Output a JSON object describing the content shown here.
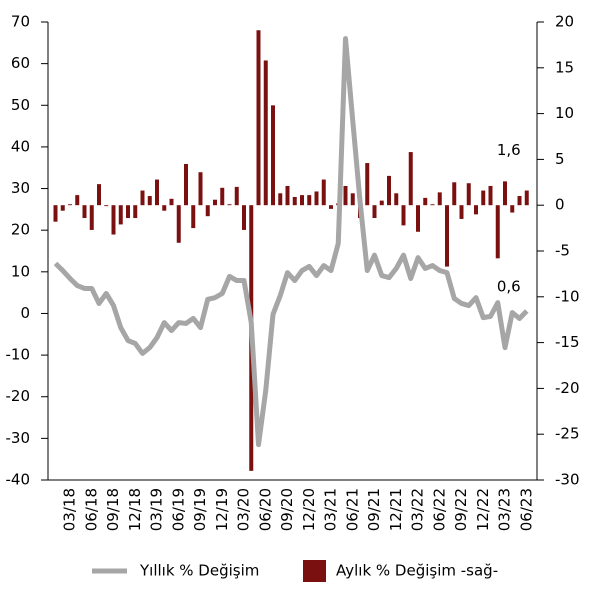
{
  "chart_data": {
    "type": "bar_line_dual",
    "categories": [
      null,
      null,
      "03/18",
      null,
      null,
      "06/18",
      null,
      null,
      "09/18",
      null,
      null,
      "12/18",
      null,
      null,
      "03/19",
      null,
      null,
      "06/19",
      null,
      null,
      "09/19",
      null,
      null,
      "12/19",
      null,
      null,
      "03/20",
      null,
      null,
      "06/20",
      null,
      null,
      "09/20",
      null,
      null,
      "12/20",
      null,
      null,
      "03/21",
      null,
      null,
      "06/21",
      null,
      null,
      "09/21",
      null,
      null,
      "12/21",
      null,
      null,
      "03/22",
      null,
      null,
      "06/22",
      null,
      null,
      "09/22",
      null,
      null,
      "12/22",
      null,
      null,
      "03/23",
      null,
      null,
      "06/23"
    ],
    "series": [
      {
        "name": "Yıllık % Değişim",
        "type": "line",
        "axis": "y",
        "color": "#a6a6a6",
        "values": [
          12,
          10.3,
          8.4,
          6.7,
          6,
          6,
          2.4,
          4.8,
          1.9,
          -3.4,
          -6.5,
          -7.2,
          -9.6,
          -8.2,
          -5.8,
          -2.2,
          -4.1,
          -2.2,
          -2.4,
          -1.2,
          -3.4,
          3.4,
          3.8,
          4.8,
          8.9,
          7.9,
          7.9,
          -2.2,
          -31.5,
          -18.5,
          -0.2,
          4.3,
          9.8,
          7.9,
          10.3,
          11.3,
          9.1,
          11.5,
          10.3,
          16.8,
          66,
          46.3,
          27,
          10.3,
          14,
          9.1,
          8.6,
          10.8,
          14,
          8.4,
          13.4,
          10.8,
          11.5,
          10.3,
          9.8,
          3.6,
          2.4,
          1.9,
          3.8,
          -1,
          -0.7,
          2.6,
          -8.2,
          0.2,
          -1.2,
          0.6
        ],
        "value_labels": [
          null,
          null,
          null,
          null,
          null,
          null,
          null,
          null,
          null,
          null,
          null,
          null,
          null,
          null,
          null,
          null,
          null,
          null,
          null,
          null,
          null,
          null,
          null,
          null,
          null,
          null,
          null,
          null,
          null,
          null,
          null,
          null,
          null,
          null,
          null,
          null,
          null,
          null,
          null,
          null,
          null,
          null,
          null,
          null,
          null,
          null,
          null,
          null,
          null,
          null,
          null,
          null,
          null,
          null,
          null,
          null,
          null,
          null,
          null,
          null,
          null,
          null,
          null,
          null,
          null,
          "0,6"
        ]
      },
      {
        "name": "Aylık % Değişim -sağ-",
        "type": "bar",
        "axis": "y2",
        "color": "#7b1010",
        "values": [
          -1.8,
          -0.6,
          0.1,
          1.1,
          -1.4,
          -2.7,
          2.3,
          -0.1,
          -3.2,
          -2.1,
          -1.4,
          -1.4,
          1.6,
          1.0,
          2.8,
          -0.6,
          0.7,
          -4.1,
          4.5,
          -2.5,
          3.6,
          -1.2,
          0.6,
          1.9,
          0.1,
          2.0,
          -2.7,
          -29,
          19.1,
          15.8,
          10.9,
          1.3,
          2.1,
          0.9,
          1.1,
          1.1,
          1.5,
          2.8,
          -0.4,
          0.2,
          2.1,
          1.3,
          -1.4,
          4.6,
          -1.4,
          0.5,
          3.2,
          1.3,
          -2.2,
          5.8,
          -2.9,
          0.8,
          0.1,
          1.4,
          -6.7,
          2.5,
          -1.5,
          2.4,
          -1.0,
          1.6,
          2.1,
          -5.8,
          2.6,
          -0.8,
          1.0,
          1.6
        ],
        "value_labels": [
          null,
          null,
          null,
          null,
          null,
          null,
          null,
          null,
          null,
          null,
          null,
          null,
          null,
          null,
          null,
          null,
          null,
          null,
          null,
          null,
          null,
          null,
          null,
          null,
          null,
          null,
          null,
          null,
          null,
          null,
          null,
          null,
          null,
          null,
          null,
          null,
          null,
          null,
          null,
          null,
          null,
          null,
          null,
          null,
          null,
          null,
          null,
          null,
          null,
          null,
          null,
          null,
          null,
          null,
          null,
          null,
          null,
          null,
          null,
          null,
          null,
          null,
          null,
          null,
          null,
          "1,6"
        ]
      }
    ],
    "ylim": [
      -40,
      70
    ],
    "yticks": [
      -40,
      -30,
      -20,
      -10,
      0,
      10,
      20,
      30,
      40,
      50,
      60,
      70
    ],
    "y2lim": [
      -30,
      20
    ],
    "y2ticks": [
      -30,
      -25,
      -20,
      -15,
      -10,
      -5,
      0,
      5,
      10,
      15,
      20
    ],
    "legend": "bottom"
  }
}
